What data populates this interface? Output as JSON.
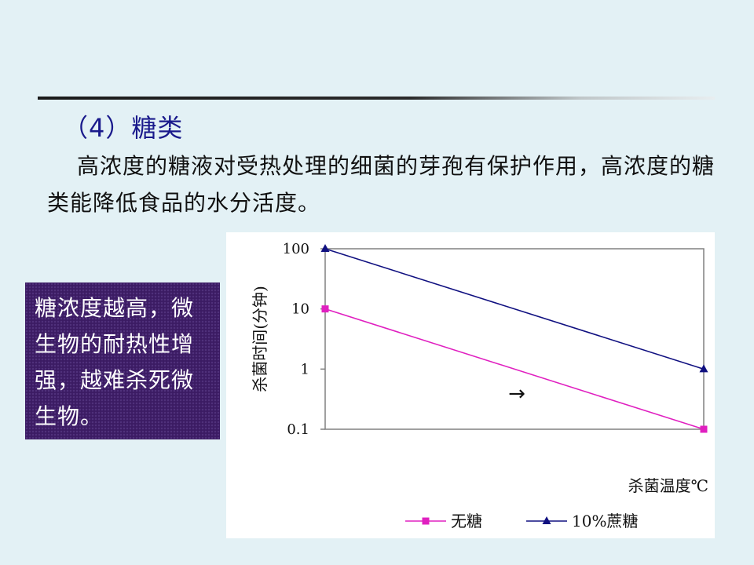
{
  "slide": {
    "title": "（4）糖类",
    "paragraph": "高浓度的糖液对受热处理的细菌的芽孢有保护作用，高浓度的糖类能降低食品的水分活度。",
    "note": "糖浓度越高，微生物的耐热性增强，越难杀死微生物。"
  },
  "chart_data": {
    "type": "line",
    "ylabel": "杀菌时间(分钟)",
    "xlabel": "杀菌温度℃",
    "y_scale": "log",
    "ylim": [
      0.1,
      100
    ],
    "y_ticks": [
      "100",
      "10",
      "1",
      "0.1"
    ],
    "annotation": "→",
    "grid": false,
    "legend_position": "bottom",
    "series": [
      {
        "name": "无糖",
        "color": "#e020c0",
        "marker": "square",
        "x": [
          0,
          1
        ],
        "y": [
          10,
          0.1
        ]
      },
      {
        "name": "10%蔗糖",
        "color": "#101080",
        "marker": "triangle",
        "x": [
          0,
          1
        ],
        "y": [
          100,
          1
        ]
      }
    ]
  }
}
